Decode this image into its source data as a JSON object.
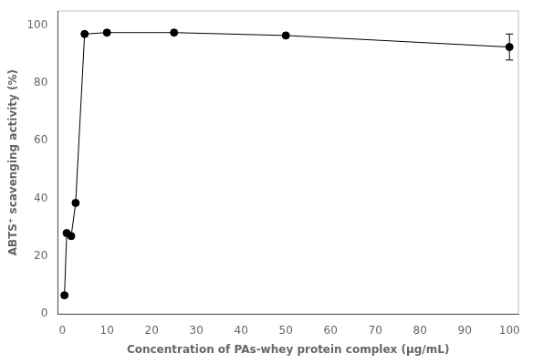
{
  "chart_data": {
    "type": "line",
    "xlabel": "Concentration of PAs-whey protein complex (μg/mL)",
    "ylabel": "ABTS⁺ scavenging activity (%)",
    "x": [
      0.5,
      1.0,
      2.0,
      3.0,
      5.0,
      10.0,
      25.0,
      50.0,
      100.0
    ],
    "values": [
      6.5,
      28.0,
      27.0,
      38.5,
      97.0,
      97.5,
      97.5,
      96.5,
      92.5
    ],
    "yerr": [
      0,
      0,
      0,
      0,
      0,
      0,
      0,
      0,
      4.5
    ],
    "xlim": [
      -1,
      102
    ],
    "ylim": [
      0,
      105
    ],
    "xticks": [
      0,
      10,
      20,
      30,
      40,
      50,
      60,
      70,
      80,
      90,
      100
    ],
    "yticks": [
      0,
      20,
      40,
      60,
      80,
      100
    ],
    "color": "black",
    "marker": "circle",
    "line_style": "solid",
    "grid": false
  }
}
